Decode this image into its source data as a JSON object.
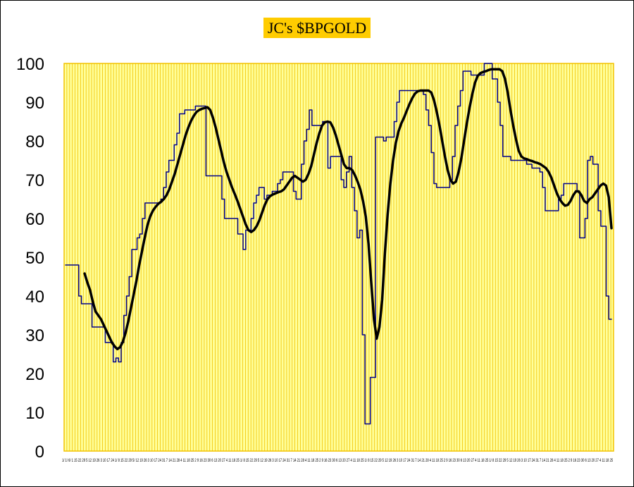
{
  "chart_data": {
    "type": "line",
    "title": "JC's $BPGOLD",
    "xlabel": "",
    "ylabel": "",
    "ylim": [
      0,
      100
    ],
    "yticks": [
      0,
      10,
      20,
      30,
      40,
      50,
      60,
      70,
      80,
      90,
      100
    ],
    "grid": "vertical",
    "legend": "none",
    "colors": {
      "plot_background": "#ffff99",
      "grid": "#f2c200",
      "raw_line": "#00008b",
      "smooth_line": "#000000",
      "title_background": "#ffcc00"
    },
    "series": [
      {
        "values": [
          48,
          48,
          48,
          48,
          48,
          40,
          38,
          38,
          38,
          38,
          32,
          32,
          32,
          32,
          32,
          28,
          28,
          28,
          23,
          24,
          23,
          28,
          35,
          40,
          45,
          52,
          52,
          55,
          56,
          60,
          64,
          64,
          64,
          64,
          64,
          64,
          65,
          68,
          72,
          75,
          75,
          79,
          82,
          87,
          87,
          88,
          88,
          88,
          88,
          89,
          89,
          89,
          89,
          71,
          71,
          71,
          71,
          71,
          71,
          65,
          60,
          60,
          60,
          60,
          60,
          56,
          56,
          52,
          57,
          57,
          60,
          64,
          66,
          68,
          68,
          65,
          66,
          66,
          67,
          67,
          69,
          70,
          72,
          72,
          72,
          72,
          67,
          65,
          65,
          74,
          80,
          83,
          88,
          84,
          84,
          84,
          84,
          85,
          85,
          73,
          76,
          76,
          76,
          76,
          70,
          68,
          72,
          76,
          68,
          62,
          55,
          57,
          30,
          7,
          7,
          19,
          19,
          81,
          81,
          81,
          80,
          81,
          81,
          81,
          85,
          90,
          93,
          93,
          93,
          93,
          93,
          93,
          93,
          93,
          93,
          92,
          88,
          84,
          77,
          69,
          68,
          68,
          68,
          68,
          68,
          70,
          76,
          84,
          89,
          93,
          98,
          98,
          98,
          97,
          97,
          97,
          97,
          97,
          100,
          100,
          100,
          96,
          96,
          90,
          84,
          76,
          76,
          76,
          75,
          75,
          75,
          75,
          75,
          75,
          74,
          74,
          73,
          73,
          73,
          72,
          68,
          62,
          62,
          62,
          62,
          62,
          65,
          66,
          69,
          69,
          69,
          69,
          69,
          67,
          55,
          55,
          60,
          75,
          76,
          74,
          74,
          62,
          58,
          58,
          40,
          34,
          34
        ]
      },
      {
        "values": [
          null,
          null,
          null,
          null,
          null,
          null,
          null,
          45.8,
          43.5,
          41.5,
          38.5,
          36,
          35,
          34,
          32.5,
          31,
          29.5,
          28,
          27,
          26.3,
          26.8,
          28.2,
          30.5,
          33.5,
          37,
          40.5,
          44,
          48,
          51.5,
          55,
          58.2,
          60.5,
          62,
          63,
          63.8,
          64.3,
          65,
          66,
          67.5,
          69.5,
          71.5,
          74,
          76.5,
          79,
          81.5,
          83.5,
          85.2,
          86.5,
          87.5,
          88,
          88.3,
          88.5,
          88.7,
          88,
          86,
          83.5,
          80.5,
          77.5,
          74.5,
          72,
          70,
          68,
          66.3,
          64.5,
          62.5,
          60.5,
          58.5,
          57,
          56.5,
          57,
          58,
          59.5,
          61.5,
          63.5,
          65,
          65.8,
          66.2,
          66.5,
          66.8,
          67,
          67.5,
          68.5,
          69.5,
          70.5,
          71,
          70.5,
          70,
          69.5,
          70,
          71.5,
          73.5,
          76.5,
          79.5,
          82,
          84,
          84.8,
          85,
          84.8,
          83.5,
          81.5,
          79,
          76.5,
          74,
          73,
          73,
          72.5,
          71.2,
          69.5,
          67.5,
          64.5,
          60.5,
          53.5,
          43.5,
          34,
          29,
          32,
          39,
          51,
          61,
          69,
          75,
          79.5,
          82.5,
          84.5,
          86,
          87.8,
          89.5,
          91,
          92.2,
          92.8,
          93,
          93,
          93,
          93,
          92.5,
          90.5,
          87.5,
          84,
          80,
          76,
          72.5,
          70,
          69,
          69.5,
          72,
          75.5,
          80,
          84.5,
          88.5,
          92,
          95,
          96.8,
          97.5,
          97.8,
          98,
          98.3,
          98.5,
          98.5,
          98.5,
          98.5,
          98,
          96,
          92.5,
          88,
          84,
          80.5,
          77.5,
          76,
          75.5,
          75.3,
          75,
          74.8,
          74.5,
          74.3,
          74,
          73.5,
          73,
          72,
          70.5,
          68.5,
          66.5,
          65,
          64,
          63.3,
          63.5,
          64.5,
          66,
          67,
          67,
          66,
          64.5,
          64,
          65,
          65.5,
          66.5,
          67.5,
          68.5,
          69,
          68.5,
          65.5,
          57.5
        ]
      }
    ],
    "x_tick_labels": "1/ 1/ 6/ 1 15 22 29 5 12 19 26 3 10 17 24 1/ 8 15 22 29 5/ 12 19 26 3 10 17 24 31 7 14 21 28 4 11 18 25 2 9 16 23 30 6 13 20 27 4 11 18 25 1/ 8 15 22 29 5 12 19 26 3 10 17 24 31 7 14 21 28 4 11 18 25 2 9 16 23 30 6 13 20 27 4 11 18 25 1/ 8 15 22 29 5 12 19 26 3 10 17 24 31 7 14 21 28 4 11 18 25 2 9 16 23 30 6 13 20 27 4 11 18 25 1/ 8 15 22 29 5 12 19 26 3 10 17 24 31 7 14 21 28 4 11 18 25 2 9 16 23 30 6 13 20 27 4 11 18 25"
  }
}
